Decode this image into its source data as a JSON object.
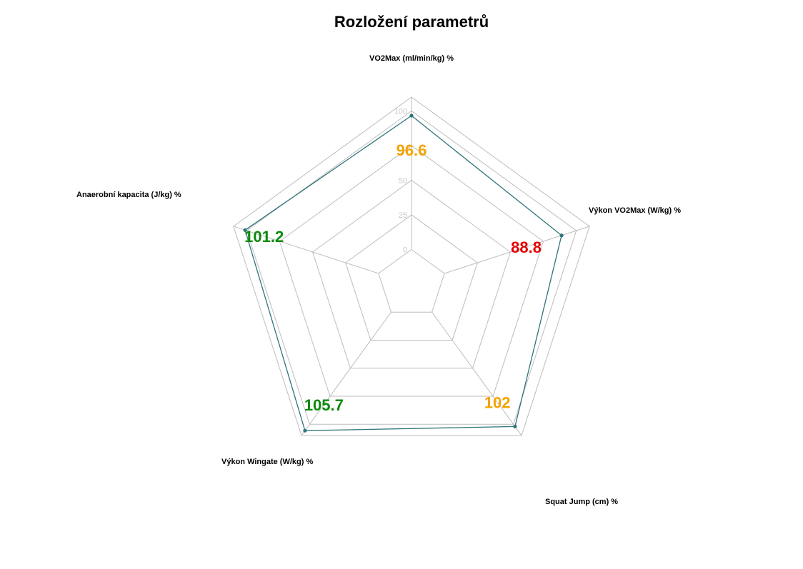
{
  "chart_data": {
    "type": "radar",
    "title": "Rozložení parametrů",
    "axes": [
      "VO2Max (ml/min/kg) %",
      "Výkon VO2Max (W/kg) %",
      "Squat Jump (cm) %",
      "Výkon Wingate  (W/kg) %",
      "Anaerobní kapacita (J/kg) %"
    ],
    "values": [
      96.6,
      88.8,
      102,
      105.7,
      101.2
    ],
    "value_labels": [
      "96.6",
      "88.8",
      "102",
      "105.7",
      "101.2"
    ],
    "value_colors": [
      "#f4a300",
      "#e60000",
      "#f4a300",
      "#0a8a0a",
      "#0a8a0a"
    ],
    "r_ticks": [
      0,
      25,
      50,
      100
    ],
    "r_tick_labels": [
      "0",
      "25",
      "50",
      "100"
    ],
    "r_range": [
      -25,
      110
    ],
    "grid": true,
    "series_color": "#2e7478"
  }
}
